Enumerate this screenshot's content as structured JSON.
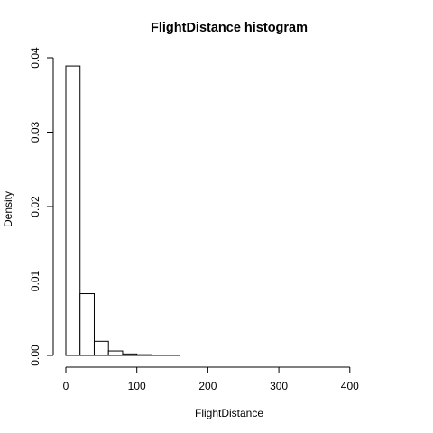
{
  "chart_data": {
    "type": "bar",
    "title": "FlightDistance  histogram",
    "xlabel": "FlightDistance",
    "ylabel": "Density",
    "bin_edges": [
      0,
      20,
      40,
      60,
      80,
      100,
      120,
      140,
      160,
      180,
      200,
      220,
      240,
      260,
      280,
      300,
      320,
      340,
      360,
      380,
      400,
      420,
      440,
      460
    ],
    "values": [
      0.0389,
      0.0083,
      0.0019,
      0.0006,
      0.0002,
      0.0001,
      3e-05,
      1e-05,
      0,
      0,
      0,
      0,
      0,
      0,
      0,
      0,
      0,
      0,
      0,
      0,
      0,
      0,
      0
    ],
    "xlim": [
      0,
      460
    ],
    "ylim": [
      0,
      0.04
    ],
    "x_ticks": [
      "0",
      "100",
      "200",
      "300",
      "400"
    ],
    "y_ticks": [
      "0.00",
      "0.01",
      "0.02",
      "0.03",
      "0.04"
    ],
    "grid": false,
    "legend": "none"
  }
}
